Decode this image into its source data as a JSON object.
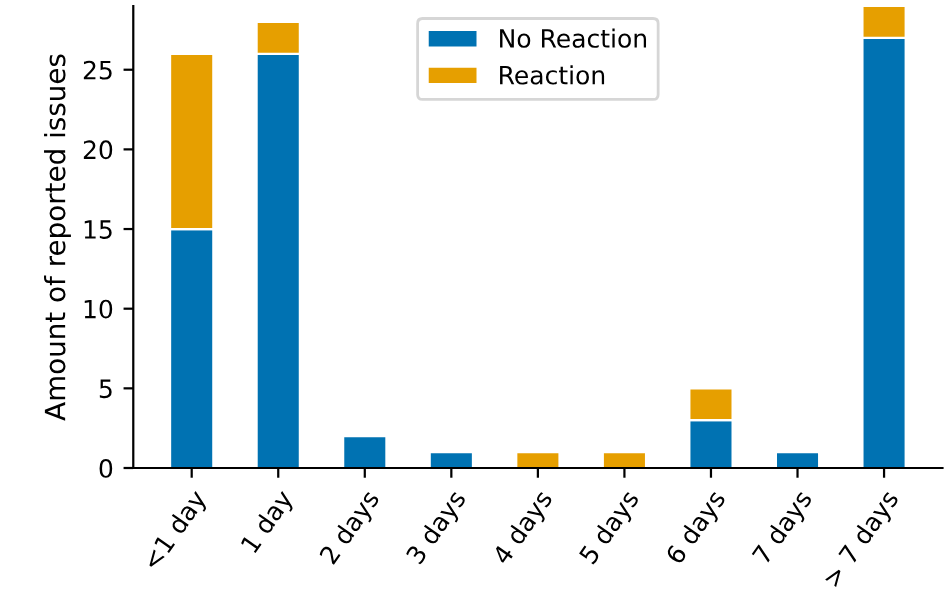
{
  "chart_data": {
    "type": "bar",
    "stacked": true,
    "ylabel": "Amount of reported issues",
    "categories": [
      "<1 day",
      "1 day",
      "2 days",
      "3 days",
      "4 days",
      "5 days",
      "6 days",
      "7 days",
      "> 7 days"
    ],
    "series": [
      {
        "name": "No Reaction",
        "color": "#0072b2",
        "values": [
          15,
          26,
          2,
          1,
          0,
          0,
          3,
          1,
          27
        ]
      },
      {
        "name": "Reaction",
        "color": "#e69f00",
        "values": [
          11,
          2,
          0,
          0,
          1,
          1,
          2,
          0,
          2
        ]
      }
    ],
    "ylim": [
      0,
      29
    ],
    "yticks": [
      0,
      5,
      10,
      15,
      20,
      25
    ],
    "grid": false,
    "legend": "top"
  }
}
